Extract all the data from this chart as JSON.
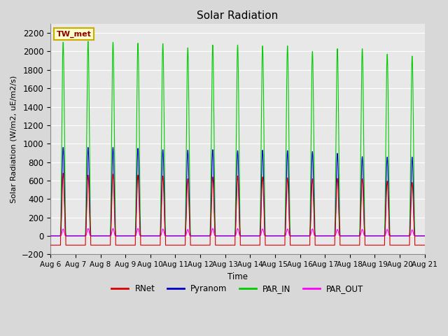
{
  "title": "Solar Radiation",
  "ylabel": "Solar Radiation (W/m2, uE/m2/s)",
  "xlabel": "Time",
  "station_label": "TW_met",
  "ylim": [
    -200,
    2300
  ],
  "yticks": [
    -200,
    0,
    200,
    400,
    600,
    800,
    1000,
    1200,
    1400,
    1600,
    1800,
    2000,
    2200
  ],
  "x_tick_labels": [
    "Aug 6",
    "Aug 7",
    "Aug 8",
    "Aug 9",
    "Aug 10",
    "Aug 11",
    "Aug 12",
    "Aug 13",
    "Aug 14",
    "Aug 15",
    "Aug 16",
    "Aug 17",
    "Aug 18",
    "Aug 19",
    "Aug 20",
    "Aug 21"
  ],
  "num_days": 15,
  "series": {
    "RNet": {
      "color": "#dd0000",
      "peak_values": [
        680,
        660,
        670,
        660,
        650,
        620,
        640,
        650,
        640,
        630,
        620,
        625,
        620,
        595,
        580
      ],
      "night_value": -100
    },
    "Pyranom": {
      "color": "#0000cc",
      "peak_values": [
        960,
        960,
        960,
        950,
        935,
        930,
        935,
        925,
        930,
        925,
        915,
        895,
        860,
        855,
        855
      ],
      "night_value": 0
    },
    "PAR_IN": {
      "color": "#00cc00",
      "peak_values": [
        2100,
        2110,
        2100,
        2090,
        2085,
        2040,
        2070,
        2070,
        2060,
        2060,
        2000,
        2030,
        2030,
        1970,
        1950
      ],
      "night_value": 0
    },
    "PAR_OUT": {
      "color": "#ff00ff",
      "peak_values": [
        75,
        80,
        80,
        80,
        75,
        70,
        80,
        80,
        75,
        75,
        75,
        70,
        70,
        70,
        65
      ],
      "night_value": 0
    }
  },
  "fig_bg_color": "#d8d8d8",
  "plot_bg_color": "#e8e8e8",
  "grid_color": "#ffffff",
  "legend_entries": [
    "RNet",
    "Pyranom",
    "PAR_IN",
    "PAR_OUT"
  ],
  "legend_colors": [
    "#dd0000",
    "#0000cc",
    "#00cc00",
    "#ff00ff"
  ]
}
